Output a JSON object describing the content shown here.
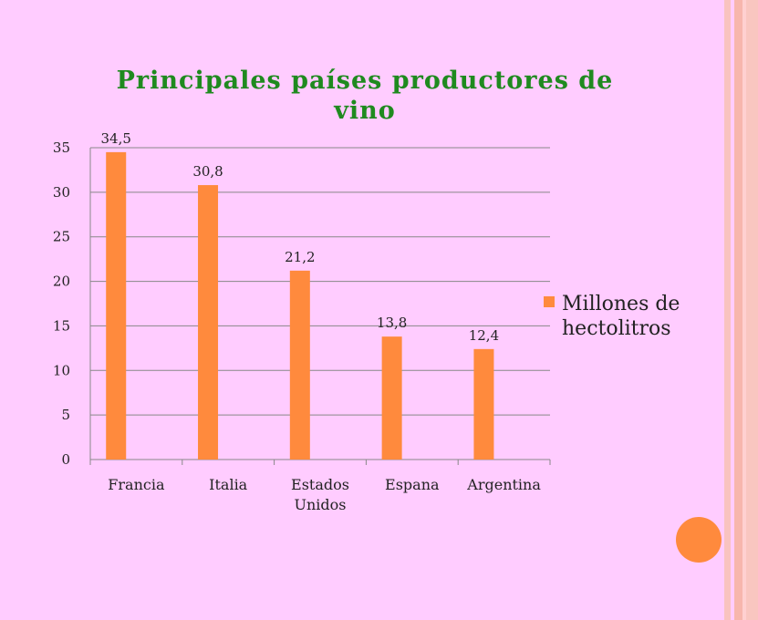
{
  "colors": {
    "background": "#ffccff",
    "bar": "#ff8a3d",
    "title": "#1f8a1f",
    "gridline": "#888888",
    "accent_dot": "#ff8a3d"
  },
  "chart_data": {
    "type": "bar",
    "title": "Principales países productores de vino",
    "categories": [
      "Francia",
      "Italia",
      "Estados Unidos",
      "Espana",
      "Argentina"
    ],
    "series": [
      {
        "name": "Millones de hectolitros",
        "values": [
          34.5,
          30.8,
          21.2,
          13.8,
          12.4
        ],
        "labels": [
          "34,5",
          "30,8",
          "21,2",
          "13,8",
          "12,4"
        ]
      }
    ],
    "yticks": [
      "0",
      "5",
      "10",
      "15",
      "20",
      "25",
      "30",
      "35"
    ],
    "ylim": [
      0,
      35
    ],
    "grid": true,
    "legend": "right"
  }
}
